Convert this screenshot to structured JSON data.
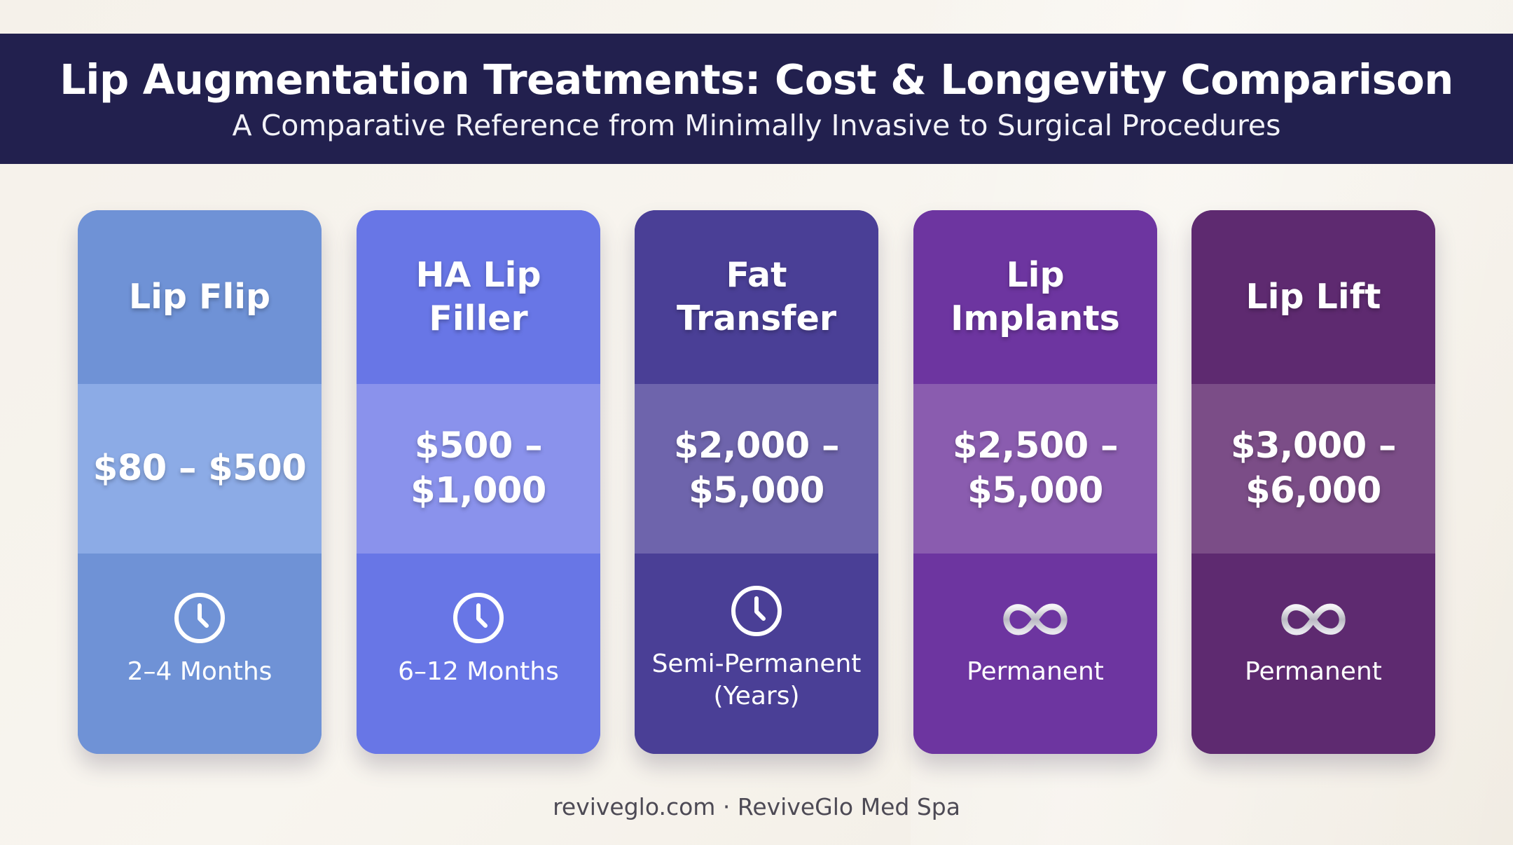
{
  "header": {
    "title": "Lip Augmentation Treatments: Cost & Longevity Comparison",
    "subtitle": "A Comparative Reference from Minimally Invasive to Surgical Procedures"
  },
  "cards": [
    {
      "name": "Lip Flip",
      "price": "$80 – $500",
      "duration": "2–4 Months",
      "icon": "clock-icon",
      "colors": {
        "top": "#6f92d6",
        "mid": "#8cabe6",
        "bottom": "#6f92d6"
      }
    },
    {
      "name": "HA Lip Filler",
      "price": "$500 – $1,000",
      "duration": "6–12 Months",
      "icon": "clock-icon",
      "colors": {
        "top": "#6876e6",
        "mid": "#8a92ec",
        "bottom": "#6876e6"
      }
    },
    {
      "name": "Fat Transfer",
      "price": "$2,000 – $5,000",
      "duration": "Semi-Permanent (Years)",
      "icon": "clock-icon",
      "colors": {
        "top": "#4a3f96",
        "mid": "#6e64ac",
        "bottom": "#4a3f96"
      }
    },
    {
      "name": "Lip Implants",
      "price": "$2,500 – $5,000",
      "duration": "Permanent",
      "icon": "infinity-icon",
      "colors": {
        "top": "#6d35a0",
        "mid": "#8a5caf",
        "bottom": "#6d35a0"
      }
    },
    {
      "name": "Lip Lift",
      "price": "$3,000 – $6,000",
      "duration": "Permanent",
      "icon": "infinity-icon",
      "colors": {
        "top": "#5e2a70",
        "mid": "#7b4d87",
        "bottom": "#5e2a70"
      }
    }
  ],
  "footer": {
    "text": "reviveglo.com · ReviveGlo Med Spa"
  }
}
